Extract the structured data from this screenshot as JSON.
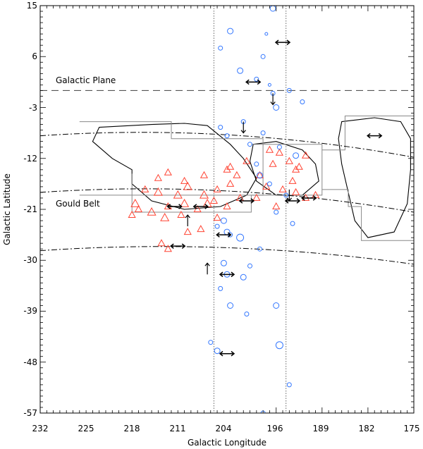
{
  "chart_data": {
    "type": "scatter",
    "xlabel": "Galactic Longitude",
    "ylabel": "Galactic Latitude",
    "xlim": [
      232,
      175
    ],
    "ylim": [
      -57,
      15
    ],
    "xticks": [
      "232",
      "225",
      "218",
      "211",
      "204",
      "196",
      "189",
      "182",
      "175"
    ],
    "yticks": [
      "15",
      "6",
      "-3",
      "-12",
      "-21",
      "-30",
      "-39",
      "-48",
      "-57"
    ],
    "annotations": {
      "galactic_plane": "Galactic Plane",
      "gould_belt": "Gould Belt"
    },
    "galactic_plane_b": 0,
    "gould_belt_curves": [
      {
        "l0": 232,
        "b0": -8.0,
        "l1": 175,
        "b1": -11.8
      },
      {
        "l0": 232,
        "b0": -18.0,
        "l1": 175,
        "b1": -21.5
      },
      {
        "l0": 232,
        "b0": -28.3,
        "l1": 175,
        "b1": -30.7
      }
    ],
    "vertical_lines_l": [
      205.5,
      194.5
    ],
    "survey_boxes": [
      [
        [
          226,
          -5.5
        ],
        [
          212,
          -5.5
        ],
        [
          212,
          -8.5
        ],
        [
          198,
          -8.5
        ],
        [
          198,
          -18.5
        ],
        [
          226,
          -18.5
        ]
      ],
      [
        [
          218,
          -14.7
        ],
        [
          218,
          -21.5
        ],
        [
          199.8,
          -21.5
        ],
        [
          199.8,
          -18.5
        ]
      ],
      [
        [
          199.8,
          -9.5
        ],
        [
          189,
          -9.5
        ],
        [
          189,
          -18.5
        ],
        [
          199.8,
          -18.5
        ]
      ],
      [
        [
          189,
          -10.5
        ],
        [
          185.5,
          -10.5
        ],
        [
          185.5,
          -4.5
        ],
        [
          175,
          -4.5
        ]
      ],
      [
        [
          189,
          -17.5
        ],
        [
          185,
          -17.5
        ],
        [
          185,
          -20.5
        ],
        [
          183,
          -20.5
        ],
        [
          183,
          -26.5
        ],
        [
          175,
          -26.5
        ]
      ]
    ],
    "cloud_regions": [
      [
        [
          223,
          -6.5
        ],
        [
          215,
          -6
        ],
        [
          210,
          -5.8
        ],
        [
          206.5,
          -6.2
        ],
        [
          203,
          -9.5
        ],
        [
          201,
          -12
        ],
        [
          199,
          -15.5
        ],
        [
          200.5,
          -18.5
        ],
        [
          204.5,
          -20.5
        ],
        [
          210,
          -21
        ],
        [
          215,
          -19.5
        ],
        [
          218,
          -16.5
        ],
        [
          218,
          -14
        ],
        [
          221,
          -12
        ],
        [
          224,
          -9
        ]
      ],
      [
        [
          199.5,
          -9.5
        ],
        [
          196,
          -9
        ],
        [
          192,
          -10.5
        ],
        [
          190,
          -13
        ],
        [
          189.5,
          -16
        ],
        [
          192,
          -18.5
        ],
        [
          196,
          -18.5
        ],
        [
          199,
          -16
        ],
        [
          200,
          -12.5
        ]
      ],
      [
        [
          186,
          -5.5
        ],
        [
          181,
          -4.8
        ],
        [
          177,
          -5.5
        ],
        [
          175.5,
          -8.5
        ],
        [
          175.5,
          -14
        ],
        [
          176,
          -20
        ],
        [
          178,
          -25
        ],
        [
          182,
          -26
        ],
        [
          184,
          -23
        ],
        [
          185,
          -18
        ],
        [
          186,
          -13
        ],
        [
          186.5,
          -8.5
        ]
      ]
    ],
    "series": [
      {
        "marker": "triangle",
        "color": "#ff4433",
        "x": [
          209.5,
          211,
          214,
          216,
          217.5,
          212.5,
          210,
          207,
          205,
          203,
          201.5,
          203.5,
          206.5,
          208,
          210.5,
          213,
          215,
          217,
          218,
          207.5,
          205,
          209.5,
          202,
          203.5,
          214,
          212.5,
          210,
          207,
          205.5,
          197,
          195.5,
          194,
          192.5,
          191.5,
          193,
          196.5,
          198.5,
          199,
          197.5,
          195,
          193,
          196,
          193.5,
          191.5,
          190,
          213.5,
          212.5,
          203,
          200.5
        ],
        "y": [
          -17,
          -18.5,
          -18,
          -17.5,
          -20,
          -20.5,
          -20,
          -18.5,
          -17.5,
          -16.5,
          -19,
          -20.5,
          -20,
          -21,
          -22,
          -22.5,
          -21.5,
          -21,
          -22,
          -24.5,
          -22.5,
          -25,
          -15,
          -14,
          -15.5,
          -14.5,
          -16,
          -15,
          -19.5,
          -10.5,
          -11,
          -12.5,
          -13.5,
          -11.5,
          -14,
          -13,
          -15,
          -19,
          -17,
          -17.5,
          -18,
          -20.5,
          -16,
          -19,
          -18.5,
          -27,
          -28,
          -13.5,
          -12.5
        ],
        "size": [
          6,
          6,
          6,
          5,
          6,
          5,
          6,
          6,
          5,
          5,
          5,
          5,
          6,
          5,
          5,
          6,
          6,
          5,
          5,
          5,
          5,
          5,
          5,
          5,
          5,
          5,
          5,
          5,
          5,
          5,
          5,
          5,
          5,
          5,
          5,
          5,
          5,
          5,
          5,
          5,
          5,
          5,
          5,
          5,
          5,
          5,
          5,
          5,
          5
        ]
      },
      {
        "marker": "circle",
        "color": "#3377ff",
        "x": [
          196.5,
          197.5,
          203,
          204.5,
          198,
          201.5,
          199,
          197,
          196.5,
          194,
          196,
          201,
          198,
          200,
          195.5,
          193,
          199,
          198.5,
          197,
          194.5,
          196,
          193.5,
          204,
          205,
          203.5,
          203,
          201.5,
          204,
          201,
          204.5,
          203.5,
          203,
          205,
          206,
          198.5,
          200,
          195.5,
          198,
          194,
          196,
          200.5,
          192,
          204.5,
          203.5
        ],
        "y": [
          14.5,
          10,
          10.5,
          7.5,
          6,
          3.5,
          2,
          1,
          -0.5,
          0,
          -3,
          -5.5,
          -7.5,
          -9.5,
          -10,
          -11.5,
          -13,
          -15,
          -16.5,
          -18.5,
          -21.5,
          -23.5,
          -23,
          -24,
          -25,
          -25.5,
          -26,
          -30.5,
          -33,
          -35,
          -32.5,
          -38,
          -46,
          -44.5,
          -28,
          -31,
          -45,
          -57,
          -52,
          -38,
          -39.5,
          -2,
          -6.5,
          -8
        ],
        "size": [
          4,
          2,
          4,
          3,
          3,
          4,
          3,
          2,
          3,
          3,
          4,
          3,
          3,
          3,
          3,
          4,
          3,
          4,
          3,
          3,
          3,
          3,
          4,
          3,
          4,
          3,
          5,
          4,
          4,
          3,
          4,
          4,
          4,
          3,
          3,
          3,
          5,
          3,
          3,
          4,
          3,
          3,
          3,
          3
        ]
      }
    ],
    "arrows": {
      "horizontal": [
        {
          "l": 195,
          "b": 8.5
        },
        {
          "l": 199.5,
          "b": 1.5
        },
        {
          "l": 181,
          "b": -8
        },
        {
          "l": 211.5,
          "b": -20.5
        },
        {
          "l": 207.5,
          "b": -20.5
        },
        {
          "l": 200.5,
          "b": -19.5
        },
        {
          "l": 193.5,
          "b": -19.5
        },
        {
          "l": 191,
          "b": -19
        },
        {
          "l": 211,
          "b": -27.5
        },
        {
          "l": 204,
          "b": -25.5
        },
        {
          "l": 203.5,
          "b": -32.5
        },
        {
          "l": 203.5,
          "b": -46.5
        }
      ],
      "vertical": [
        {
          "l": 196.5,
          "b": -1.5,
          "dir": "down"
        },
        {
          "l": 201,
          "b": -6.5,
          "dir": "down"
        },
        {
          "l": 209.5,
          "b": -23,
          "dir": "up"
        },
        {
          "l": 194,
          "b": -18.5,
          "dir": "down"
        },
        {
          "l": 206.5,
          "b": -31.5,
          "dir": "up"
        }
      ]
    }
  }
}
